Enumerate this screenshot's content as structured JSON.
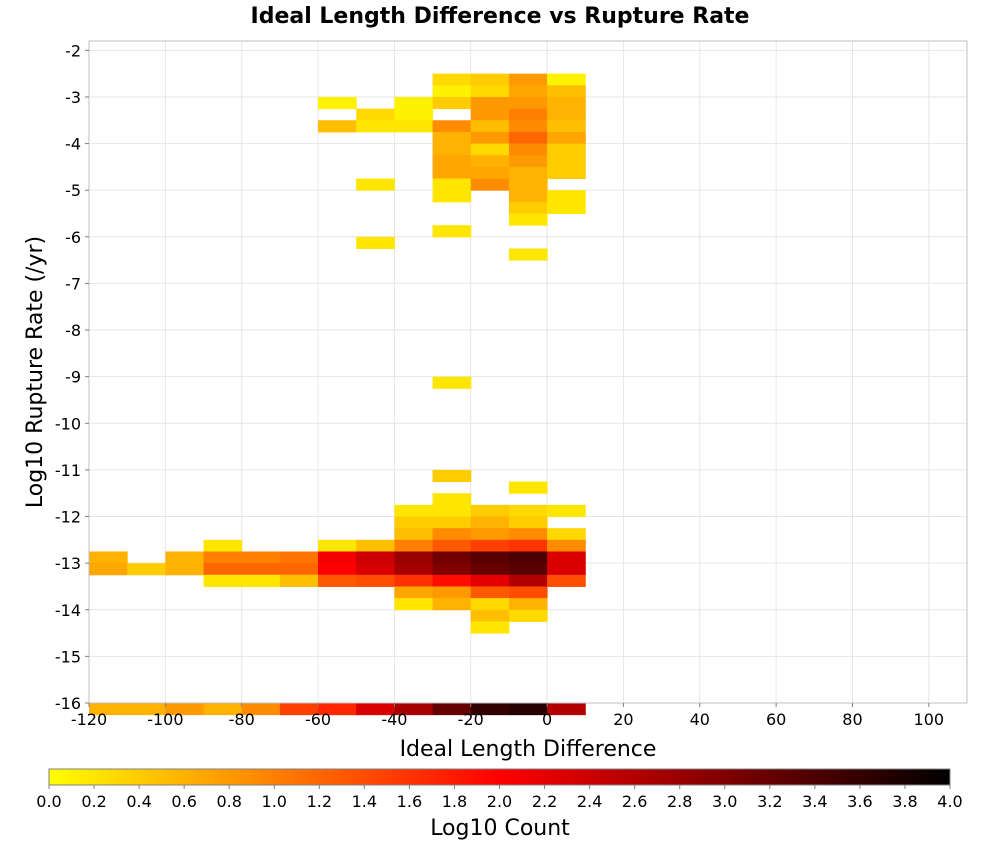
{
  "chart_data": {
    "type": "heatmap",
    "title": "Ideal Length Difference vs Rupture Rate",
    "xlabel": "Ideal Length Difference",
    "ylabel": "Log10 Rupture Rate (/yr)",
    "xlim": [
      -120,
      110
    ],
    "ylim": [
      -16,
      -1.8
    ],
    "x_ticks": [
      -120,
      -100,
      -80,
      -60,
      -40,
      -20,
      0,
      20,
      40,
      60,
      80,
      100
    ],
    "y_ticks": [
      -2,
      -3,
      -4,
      -5,
      -6,
      -7,
      -8,
      -9,
      -10,
      -11,
      -12,
      -13,
      -14,
      -15,
      -16
    ],
    "x_bin_width": 10,
    "y_bin_height": 0.25,
    "grid": true,
    "colorbar": {
      "label": "Log10 Count",
      "range": [
        0.0,
        4.0
      ],
      "ticks": [
        0.0,
        0.2,
        0.4,
        0.6,
        0.8,
        1.0,
        1.2,
        1.4,
        1.6,
        1.8,
        2.0,
        2.2,
        2.4,
        2.6,
        2.8,
        3.0,
        3.2,
        3.4,
        3.6,
        3.8,
        4.0
      ],
      "tick_labels": [
        "0.0",
        "0.2",
        "0.4",
        "0.6",
        "0.8",
        "1.0",
        "1.2",
        "1.4",
        "1.6",
        "1.8",
        "2.0",
        "2.2",
        "2.4",
        "2.6",
        "2.8",
        "3.0",
        "3.2",
        "3.4",
        "3.6",
        "3.8",
        "4.0"
      ],
      "colors": [
        "#ffff00",
        "#ff0000",
        "#000000"
      ],
      "placement": "bottom"
    },
    "cells": [
      {
        "x": -30,
        "y": -2.5,
        "v": 0.3
      },
      {
        "x": -20,
        "y": -2.5,
        "v": 0.4
      },
      {
        "x": -10,
        "y": -2.5,
        "v": 0.8
      },
      {
        "x": 0,
        "y": -2.5,
        "v": 0.1
      },
      {
        "x": -30,
        "y": -2.75,
        "v": 0.1
      },
      {
        "x": -20,
        "y": -2.75,
        "v": 0.3
      },
      {
        "x": -10,
        "y": -2.75,
        "v": 0.7
      },
      {
        "x": 0,
        "y": -2.75,
        "v": 0.5
      },
      {
        "x": -60,
        "y": -3.0,
        "v": 0.1
      },
      {
        "x": -40,
        "y": -3.0,
        "v": 0.1
      },
      {
        "x": -30,
        "y": -3.0,
        "v": 0.4
      },
      {
        "x": -20,
        "y": -3.0,
        "v": 0.8
      },
      {
        "x": -10,
        "y": -3.0,
        "v": 0.8
      },
      {
        "x": 0,
        "y": -3.0,
        "v": 0.6
      },
      {
        "x": -50,
        "y": -3.25,
        "v": 0.3
      },
      {
        "x": -40,
        "y": -3.25,
        "v": 0.1
      },
      {
        "x": -20,
        "y": -3.25,
        "v": 0.8
      },
      {
        "x": -10,
        "y": -3.25,
        "v": 1.0
      },
      {
        "x": 0,
        "y": -3.25,
        "v": 0.6
      },
      {
        "x": -60,
        "y": -3.5,
        "v": 0.5
      },
      {
        "x": -50,
        "y": -3.5,
        "v": 0.2
      },
      {
        "x": -40,
        "y": -3.5,
        "v": 0.2
      },
      {
        "x": -30,
        "y": -3.5,
        "v": 0.9
      },
      {
        "x": -20,
        "y": -3.5,
        "v": 0.5
      },
      {
        "x": -10,
        "y": -3.5,
        "v": 0.9
      },
      {
        "x": 0,
        "y": -3.5,
        "v": 0.5
      },
      {
        "x": -30,
        "y": -3.75,
        "v": 0.6
      },
      {
        "x": -20,
        "y": -3.75,
        "v": 0.8
      },
      {
        "x": -10,
        "y": -3.75,
        "v": 1.2
      },
      {
        "x": 0,
        "y": -3.75,
        "v": 0.7
      },
      {
        "x": -30,
        "y": -4.0,
        "v": 0.6
      },
      {
        "x": -20,
        "y": -4.0,
        "v": 0.3
      },
      {
        "x": -10,
        "y": -4.0,
        "v": 0.9
      },
      {
        "x": 0,
        "y": -4.0,
        "v": 0.4
      },
      {
        "x": -30,
        "y": -4.25,
        "v": 0.7
      },
      {
        "x": -20,
        "y": -4.25,
        "v": 0.6
      },
      {
        "x": -10,
        "y": -4.25,
        "v": 0.8
      },
      {
        "x": 0,
        "y": -4.25,
        "v": 0.4
      },
      {
        "x": -30,
        "y": -4.5,
        "v": 0.7
      },
      {
        "x": -20,
        "y": -4.5,
        "v": 0.7
      },
      {
        "x": -10,
        "y": -4.5,
        "v": 0.6
      },
      {
        "x": 0,
        "y": -4.5,
        "v": 0.4
      },
      {
        "x": -50,
        "y": -4.75,
        "v": 0.2
      },
      {
        "x": -30,
        "y": -4.75,
        "v": 0.2
      },
      {
        "x": -20,
        "y": -4.75,
        "v": 0.9
      },
      {
        "x": -10,
        "y": -4.75,
        "v": 0.6
      },
      {
        "x": -30,
        "y": -5.0,
        "v": 0.2
      },
      {
        "x": -10,
        "y": -5.0,
        "v": 0.6
      },
      {
        "x": 0,
        "y": -5.0,
        "v": 0.2
      },
      {
        "x": -10,
        "y": -5.25,
        "v": 0.4
      },
      {
        "x": 0,
        "y": -5.25,
        "v": 0.2
      },
      {
        "x": -10,
        "y": -5.5,
        "v": 0.2
      },
      {
        "x": -30,
        "y": -5.75,
        "v": 0.2
      },
      {
        "x": -50,
        "y": -6.0,
        "v": 0.2
      },
      {
        "x": -10,
        "y": -6.25,
        "v": 0.2
      },
      {
        "x": -30,
        "y": -9.0,
        "v": 0.2
      },
      {
        "x": -30,
        "y": -11.0,
        "v": 0.4
      },
      {
        "x": -10,
        "y": -11.25,
        "v": 0.2
      },
      {
        "x": -30,
        "y": -11.5,
        "v": 0.2
      },
      {
        "x": -40,
        "y": -11.75,
        "v": 0.2
      },
      {
        "x": -30,
        "y": -11.75,
        "v": 0.2
      },
      {
        "x": -20,
        "y": -11.75,
        "v": 0.4
      },
      {
        "x": -10,
        "y": -11.75,
        "v": 0.3
      },
      {
        "x": 0,
        "y": -11.75,
        "v": 0.2
      },
      {
        "x": -40,
        "y": -12.0,
        "v": 0.4
      },
      {
        "x": -30,
        "y": -12.0,
        "v": 0.4
      },
      {
        "x": -20,
        "y": -12.0,
        "v": 0.6
      },
      {
        "x": -10,
        "y": -12.0,
        "v": 0.4
      },
      {
        "x": -40,
        "y": -12.25,
        "v": 0.5
      },
      {
        "x": -30,
        "y": -12.25,
        "v": 0.9
      },
      {
        "x": -20,
        "y": -12.25,
        "v": 0.8
      },
      {
        "x": -10,
        "y": -12.25,
        "v": 0.9
      },
      {
        "x": 0,
        "y": -12.25,
        "v": 0.3
      },
      {
        "x": -90,
        "y": -12.5,
        "v": 0.2
      },
      {
        "x": -60,
        "y": -12.5,
        "v": 0.2
      },
      {
        "x": -50,
        "y": -12.5,
        "v": 0.5
      },
      {
        "x": -40,
        "y": -12.5,
        "v": 1.0
      },
      {
        "x": -30,
        "y": -12.5,
        "v": 1.3
      },
      {
        "x": -20,
        "y": -12.5,
        "v": 1.5
      },
      {
        "x": -10,
        "y": -12.5,
        "v": 1.6
      },
      {
        "x": 0,
        "y": -12.5,
        "v": 0.9
      },
      {
        "x": -120,
        "y": -12.75,
        "v": 0.6
      },
      {
        "x": -100,
        "y": -12.75,
        "v": 0.6
      },
      {
        "x": -90,
        "y": -12.75,
        "v": 1.0
      },
      {
        "x": -80,
        "y": -12.75,
        "v": 1.0
      },
      {
        "x": -70,
        "y": -12.75,
        "v": 1.1
      },
      {
        "x": -60,
        "y": -12.75,
        "v": 2.1
      },
      {
        "x": -50,
        "y": -12.75,
        "v": 2.4
      },
      {
        "x": -40,
        "y": -12.75,
        "v": 2.8
      },
      {
        "x": -30,
        "y": -12.75,
        "v": 3.1
      },
      {
        "x": -20,
        "y": -12.75,
        "v": 3.3
      },
      {
        "x": -10,
        "y": -12.75,
        "v": 3.4
      },
      {
        "x": 0,
        "y": -12.75,
        "v": 2.3
      },
      {
        "x": -120,
        "y": -13.0,
        "v": 0.7
      },
      {
        "x": -110,
        "y": -13.0,
        "v": 0.4
      },
      {
        "x": -100,
        "y": -13.0,
        "v": 0.6
      },
      {
        "x": -90,
        "y": -13.0,
        "v": 1.2
      },
      {
        "x": -80,
        "y": -13.0,
        "v": 1.2
      },
      {
        "x": -70,
        "y": -13.0,
        "v": 1.2
      },
      {
        "x": -60,
        "y": -13.0,
        "v": 2.0
      },
      {
        "x": -50,
        "y": -13.0,
        "v": 2.3
      },
      {
        "x": -40,
        "y": -13.0,
        "v": 2.7
      },
      {
        "x": -30,
        "y": -13.0,
        "v": 3.0
      },
      {
        "x": -20,
        "y": -13.0,
        "v": 3.2
      },
      {
        "x": -10,
        "y": -13.0,
        "v": 3.3
      },
      {
        "x": 0,
        "y": -13.0,
        "v": 2.3
      },
      {
        "x": -90,
        "y": -13.25,
        "v": 0.2
      },
      {
        "x": -80,
        "y": -13.25,
        "v": 0.2
      },
      {
        "x": -70,
        "y": -13.25,
        "v": 0.5
      },
      {
        "x": -60,
        "y": -13.25,
        "v": 1.3
      },
      {
        "x": -50,
        "y": -13.25,
        "v": 1.4
      },
      {
        "x": -40,
        "y": -13.25,
        "v": 1.6
      },
      {
        "x": -30,
        "y": -13.25,
        "v": 1.9
      },
      {
        "x": -20,
        "y": -13.25,
        "v": 2.2
      },
      {
        "x": -10,
        "y": -13.25,
        "v": 2.6
      },
      {
        "x": 0,
        "y": -13.25,
        "v": 1.4
      },
      {
        "x": -40,
        "y": -13.5,
        "v": 0.7
      },
      {
        "x": -30,
        "y": -13.5,
        "v": 0.8
      },
      {
        "x": -20,
        "y": -13.5,
        "v": 1.3
      },
      {
        "x": -10,
        "y": -13.5,
        "v": 1.4
      },
      {
        "x": -40,
        "y": -13.75,
        "v": 0.2
      },
      {
        "x": -30,
        "y": -13.75,
        "v": 0.6
      },
      {
        "x": -20,
        "y": -13.75,
        "v": 0.3
      },
      {
        "x": -10,
        "y": -13.75,
        "v": 0.6
      },
      {
        "x": -20,
        "y": -14.0,
        "v": 0.5
      },
      {
        "x": -10,
        "y": -14.0,
        "v": 0.3
      },
      {
        "x": -20,
        "y": -14.25,
        "v": 0.2
      },
      {
        "x": -120,
        "y": -16.0,
        "v": 0.6
      },
      {
        "x": -110,
        "y": -16.0,
        "v": 0.6
      },
      {
        "x": -100,
        "y": -16.0,
        "v": 0.8
      },
      {
        "x": -90,
        "y": -16.0,
        "v": 0.6
      },
      {
        "x": -80,
        "y": -16.0,
        "v": 0.9
      },
      {
        "x": -70,
        "y": -16.0,
        "v": 1.5
      },
      {
        "x": -60,
        "y": -16.0,
        "v": 1.7
      },
      {
        "x": -50,
        "y": -16.0,
        "v": 2.3
      },
      {
        "x": -40,
        "y": -16.0,
        "v": 2.7
      },
      {
        "x": -30,
        "y": -16.0,
        "v": 3.2
      },
      {
        "x": -20,
        "y": -16.0,
        "v": 3.6
      },
      {
        "x": -10,
        "y": -16.0,
        "v": 3.7
      },
      {
        "x": 0,
        "y": -16.0,
        "v": 2.6
      }
    ]
  }
}
